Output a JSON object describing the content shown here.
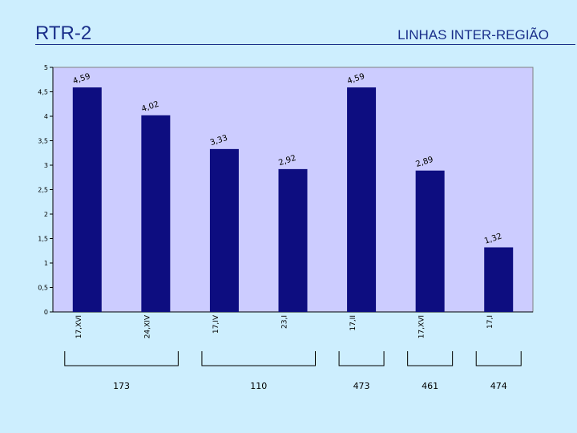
{
  "slide": {
    "title": "RTR-2",
    "subtitle": "LINHAS INTER-REGIÃO"
  },
  "chart_data": {
    "type": "bar",
    "categories": [
      "17,XVI",
      "24,XIV",
      "17,IV",
      "23,I",
      "17,II",
      "17,XVI",
      "17,I"
    ],
    "values": [
      4.59,
      4.02,
      3.33,
      2.92,
      4.59,
      2.89,
      1.32
    ],
    "value_labels": [
      "4,59",
      "4,02",
      "3,33",
      "2,92",
      "4,59",
      "2,89",
      "1,32"
    ],
    "ylim": [
      0,
      5
    ],
    "yticks": [
      0,
      0.5,
      1,
      1.5,
      2,
      2.5,
      3,
      3.5,
      4,
      4.5,
      5
    ],
    "ytick_labels": [
      "0",
      "0,5",
      "1",
      "1,5",
      "2",
      "2,5",
      "3",
      "3,5",
      "4",
      "4,5",
      "5"
    ],
    "groups": [
      {
        "label": "173",
        "from": 0,
        "to": 1
      },
      {
        "label": "110",
        "from": 2,
        "to": 3
      },
      {
        "label": "473",
        "from": 4,
        "to": 4
      },
      {
        "label": "461",
        "from": 5,
        "to": 5
      },
      {
        "label": "474",
        "from": 6,
        "to": 6
      }
    ],
    "grid": false,
    "legend": "none",
    "bar_color": "#0d0d80",
    "plot_background": "#ccccff"
  }
}
